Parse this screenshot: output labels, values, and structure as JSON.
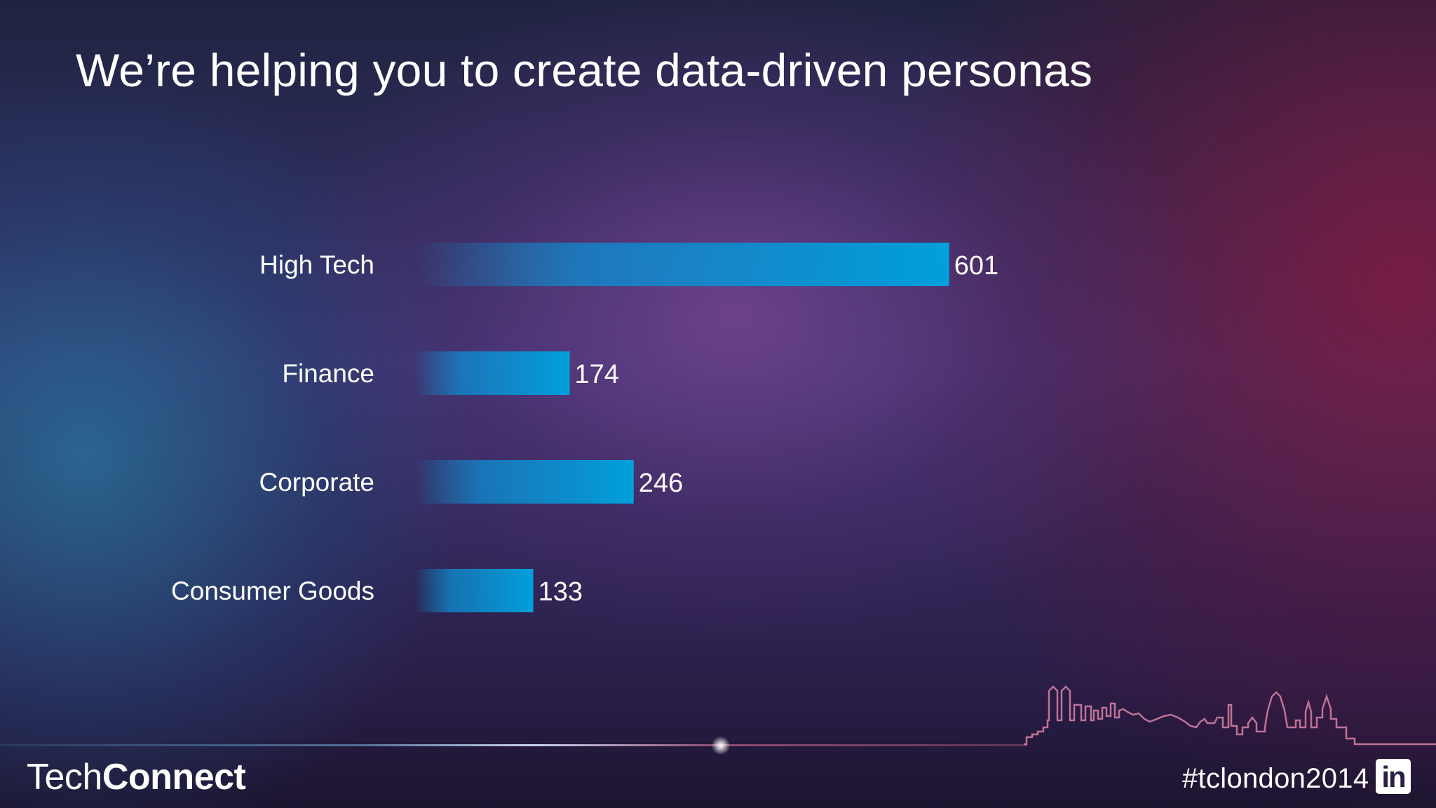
{
  "slide": {
    "title": "We’re helping you to create data-driven personas"
  },
  "chart_data": {
    "type": "bar",
    "orientation": "horizontal",
    "categories": [
      "High Tech",
      "Finance",
      "Corporate",
      "Consumer Goods"
    ],
    "values": [
      601,
      174,
      246,
      133
    ],
    "bar_color": "#00a0dc"
  },
  "footer": {
    "brand_light": "Tech",
    "brand_bold": "Connect",
    "hashtag": "#tclondon2014",
    "logo_text": "in",
    "logo_icon": "linkedin-icon",
    "skyline_icon": "london-skyline-icon"
  }
}
